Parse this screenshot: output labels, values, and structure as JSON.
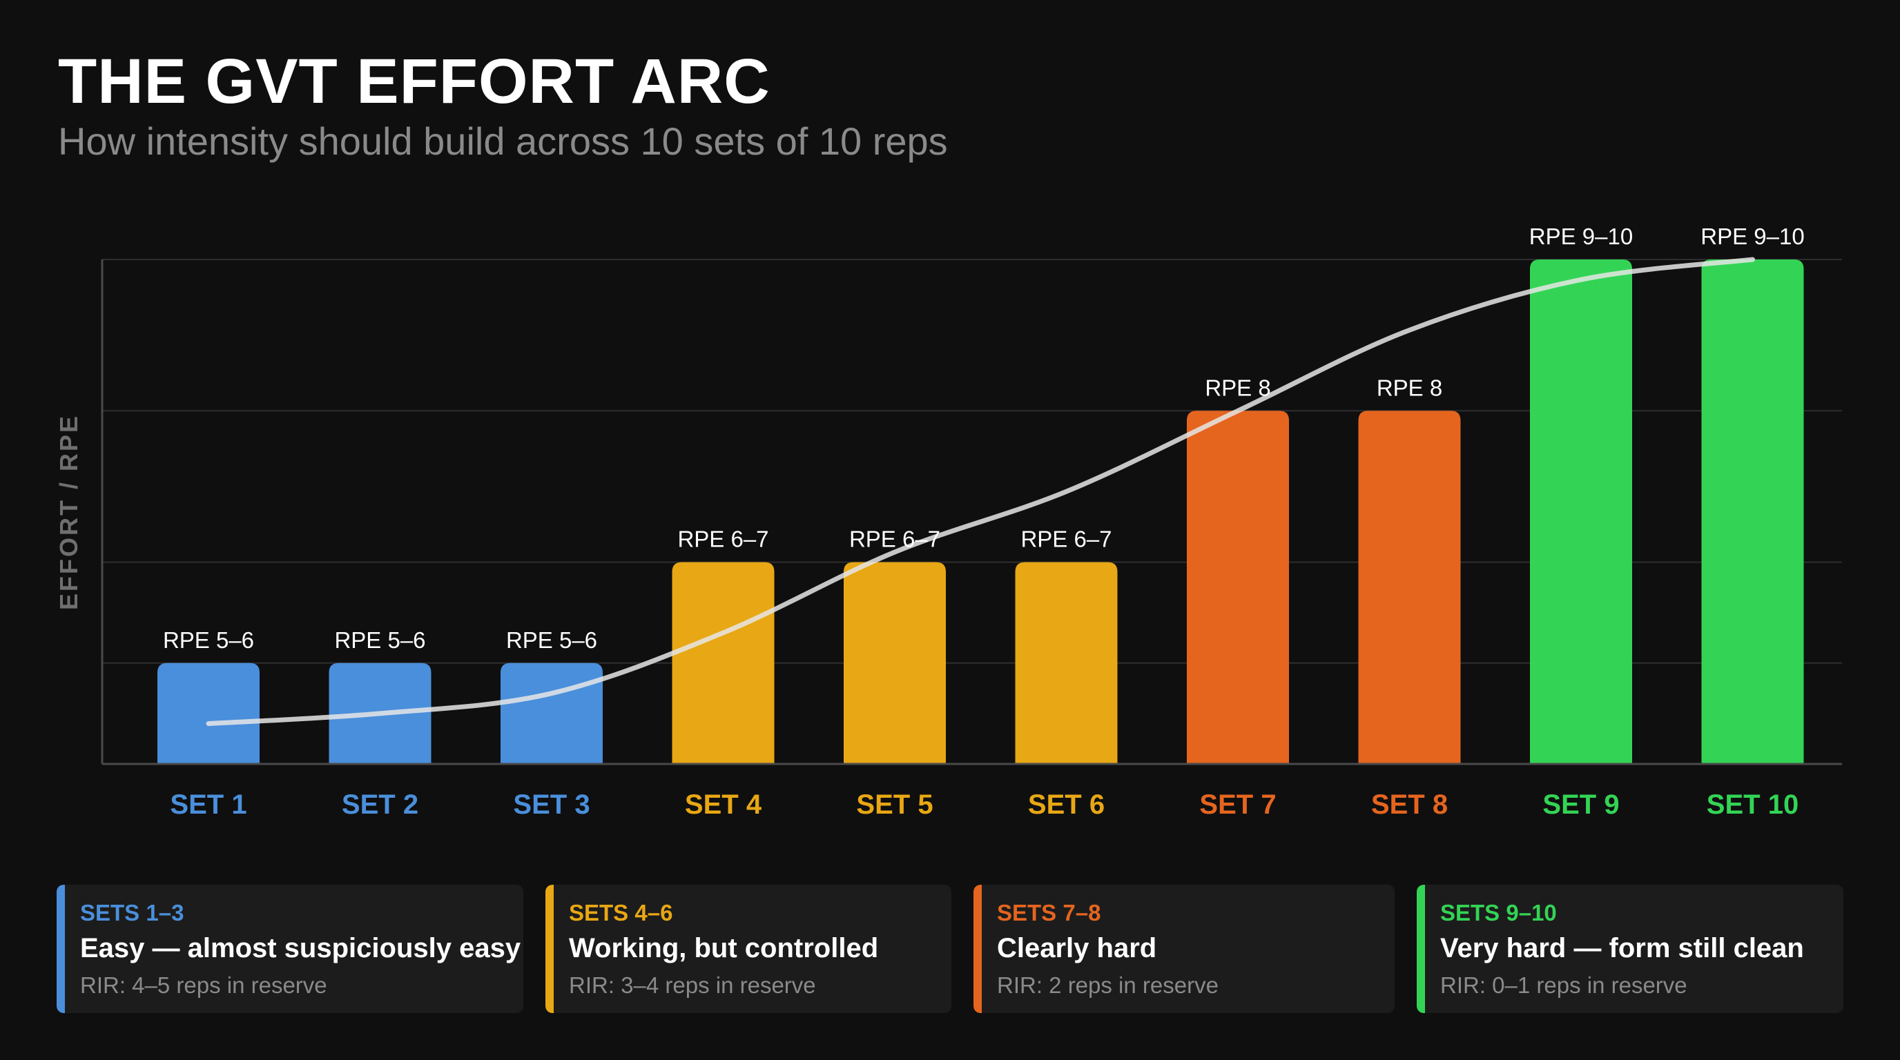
{
  "header": {
    "title": "THE GVT EFFORT ARC",
    "subtitle": "How intensity should build across 10 sets of 10 reps"
  },
  "chart_data": {
    "type": "bar",
    "title": "THE GVT EFFORT ARC",
    "subtitle": "How intensity should build across 10 sets of 10 reps",
    "ylabel": "EFFORT / RPE",
    "xlabel": "",
    "categories": [
      "SET 1",
      "SET 2",
      "SET 3",
      "SET 4",
      "SET 5",
      "SET 6",
      "SET 7",
      "SET 8",
      "SET 9",
      "SET 10"
    ],
    "values": [
      5.5,
      5.5,
      5.5,
      6.5,
      6.5,
      6.5,
      8,
      8,
      9.5,
      9.5
    ],
    "data_labels": [
      "RPE 5–6",
      "RPE 5–6",
      "RPE 5–6",
      "RPE 6–7",
      "RPE 6–7",
      "RPE 6–7",
      "RPE 8",
      "RPE 8",
      "RPE 9–10",
      "RPE 9–10"
    ],
    "trend_line": [
      4.9,
      5.0,
      5.2,
      5.8,
      6.6,
      7.2,
      8.0,
      8.8,
      9.3,
      9.5
    ],
    "ylim": [
      4.5,
      9.5
    ],
    "grid": true,
    "y_tick_labels_shown": false,
    "bar_colors": [
      "#4a8fdb",
      "#4a8fdb",
      "#4a8fdb",
      "#e8a714",
      "#e8a714",
      "#e8a714",
      "#e5651f",
      "#e5651f",
      "#33d455",
      "#33d455"
    ]
  },
  "colors": {
    "background": "#0f0f0f",
    "easy": "#4a8fdb",
    "working": "#e8a714",
    "hard": "#e5651f",
    "very_hard": "#33d455",
    "trend": "#e6e6e6"
  },
  "legend": [
    {
      "range": "SETS 1–3",
      "desc": "Easy — almost suspiciously easy",
      "rir": "RIR: 4–5 reps in reserve",
      "color": "#4a8fdb"
    },
    {
      "range": "SETS 4–6",
      "desc": "Working, but controlled",
      "rir": "RIR: 3–4 reps in reserve",
      "color": "#e8a714"
    },
    {
      "range": "SETS 7–8",
      "desc": "Clearly hard",
      "rir": "RIR: 2 reps in reserve",
      "color": "#e5651f"
    },
    {
      "range": "SETS 9–10",
      "desc": "Very hard — form still clean",
      "rir": "RIR: 0–1 reps in reserve",
      "color": "#33d455"
    }
  ]
}
